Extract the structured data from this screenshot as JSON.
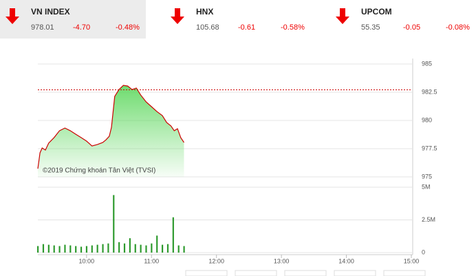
{
  "indices": [
    {
      "name": "VN INDEX",
      "value": "978.01",
      "change": "-4.70",
      "pct": "-0.48%"
    },
    {
      "name": "HNX",
      "value": "105.68",
      "change": "-0.61",
      "pct": "-0.58%"
    },
    {
      "name": "UPCOM",
      "value": "55.35",
      "change": "-0.05",
      "pct": "-0.08%"
    }
  ],
  "chart_data": [
    {
      "type": "line",
      "annotation": "©2019 Chứng khoán Tân Việt (TVSI)",
      "x": [
        "09:15",
        "09:17",
        "09:19",
        "09:22",
        "09:25",
        "09:30",
        "09:35",
        "09:40",
        "09:45",
        "09:50",
        "09:55",
        "10:00",
        "10:05",
        "10:10",
        "10:15",
        "10:18",
        "10:21",
        "10:23",
        "10:26",
        "10:30",
        "10:34",
        "10:38",
        "10:42",
        "10:46",
        "10:50",
        "10:55",
        "11:00",
        "11:05",
        "11:10",
        "11:14",
        "11:18",
        "11:21",
        "11:24",
        "11:27",
        "11:30"
      ],
      "values": [
        975.73,
        977.13,
        977.56,
        977.38,
        977.99,
        978.48,
        979.09,
        979.33,
        979.09,
        978.78,
        978.48,
        978.17,
        977.74,
        977.87,
        978.05,
        978.29,
        978.6,
        979.39,
        982.13,
        982.74,
        983.11,
        983.05,
        982.74,
        982.87,
        982.26,
        981.65,
        981.22,
        980.79,
        980.43,
        979.82,
        979.51,
        979.09,
        979.27,
        978.48,
        978.05
      ],
      "color": "#cc0000",
      "area_color": "#5fd85f",
      "reference_line": 982.71,
      "reference_color": "#cc0000",
      "xlim": [
        "09:15",
        "15:00"
      ],
      "ylim": [
        975,
        985
      ],
      "yticks": [
        975,
        977.5,
        980,
        982.5,
        985
      ],
      "grid": true
    },
    {
      "type": "bar",
      "x": [
        "09:15",
        "09:20",
        "09:25",
        "09:30",
        "09:35",
        "09:40",
        "09:45",
        "09:50",
        "09:55",
        "10:00",
        "10:05",
        "10:10",
        "10:15",
        "10:20",
        "10:25",
        "10:30",
        "10:35",
        "10:40",
        "10:45",
        "10:50",
        "10:55",
        "11:00",
        "11:05",
        "11:10",
        "11:15",
        "11:20",
        "11:25",
        "11:30"
      ],
      "values": [
        500000,
        650000,
        600000,
        550000,
        500000,
        600000,
        550000,
        500000,
        450000,
        500000,
        550000,
        600000,
        650000,
        700000,
        4400000,
        800000,
        700000,
        1100000,
        650000,
        600000,
        550000,
        700000,
        1300000,
        600000,
        650000,
        2700000,
        550000,
        500000
      ],
      "color": "#2e9a2e",
      "xlim": [
        "09:15",
        "15:00"
      ],
      "ylim": [
        0,
        5000000
      ],
      "yticks": [
        0,
        {
          "value": 2500000,
          "label": "2.5M"
        },
        {
          "value": 5000000,
          "label": "5M"
        }
      ],
      "xticks": [
        "10:00",
        "11:00",
        "12:00",
        "13:00",
        "14:00",
        "15:00"
      ],
      "grid": true
    }
  ]
}
